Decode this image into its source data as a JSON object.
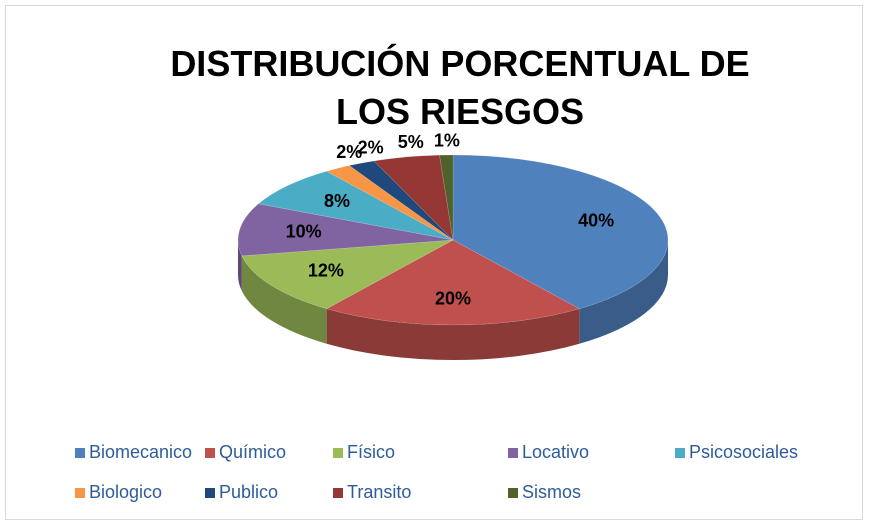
{
  "chart_data": {
    "type": "pie",
    "title": "DISTRIBUCIÓN PORCENTUAL DE LOS RIESGOS",
    "categories": [
      "Biomecanico",
      "Químico",
      "Físico",
      "Locativo",
      "Psicosociales",
      "Biologico",
      "Publico",
      "Transito",
      "Sismos"
    ],
    "values": [
      40,
      20,
      12,
      10,
      8,
      2,
      2,
      5,
      1
    ],
    "value_labels": [
      "40%",
      "20%",
      "12%",
      "10%",
      "8%",
      "2%",
      "2%",
      "5%",
      "1%"
    ],
    "colors": [
      "#4f81bd",
      "#c0504d",
      "#9bbb59",
      "#8064a2",
      "#4bacc6",
      "#f79646",
      "#1f497d",
      "#953735",
      "#4f6228"
    ],
    "legend": "bottom"
  }
}
